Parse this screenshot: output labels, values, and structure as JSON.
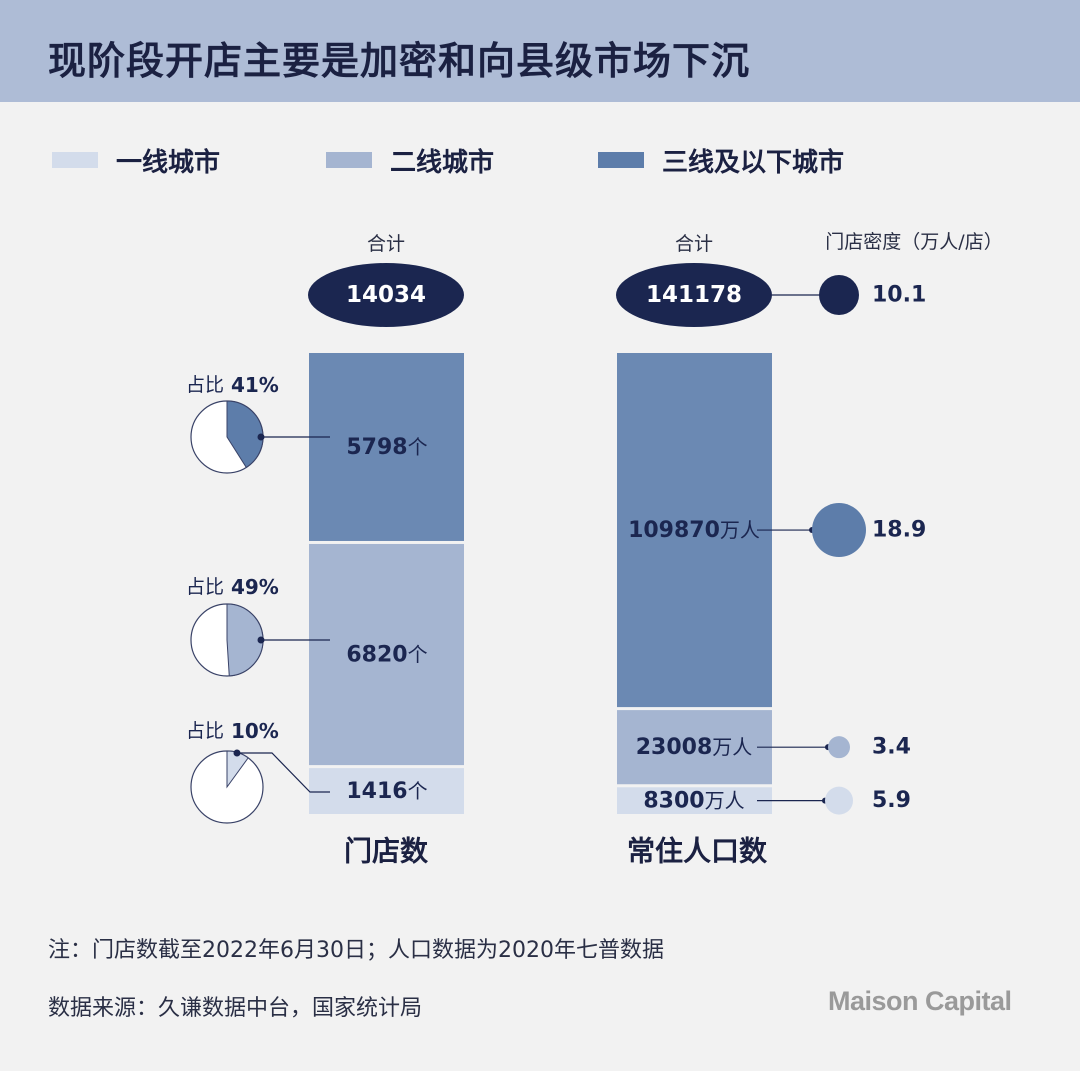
{
  "title": "现阶段开店主要是加密和向县级市场下沉",
  "legend": [
    {
      "label": "一线城市",
      "color": "#d3dceb"
    },
    {
      "label": "二线城市",
      "color": "#a5b5d1"
    },
    {
      "label": "三线及以下城市",
      "color": "#5d7daa"
    }
  ],
  "chart_data": {
    "type": "bar",
    "stacked": true,
    "categories": [
      "门店数",
      "常住人口数"
    ],
    "series": [
      {
        "name": "一线城市",
        "values": [
          1416,
          8300
        ],
        "color": "#d3dceb"
      },
      {
        "name": "二线城市",
        "values": [
          6820,
          23008
        ],
        "color": "#a5b5d1"
      },
      {
        "name": "三线及以下城市",
        "values": [
          5798,
          109870
        ],
        "color": "#6b89b3"
      }
    ],
    "stores": {
      "total_label": "合计",
      "total": "14034",
      "segments": [
        {
          "value": "5798",
          "unit": "个",
          "share_label": "占比",
          "share": "41%",
          "share_value": 0.41
        },
        {
          "value": "6820",
          "unit": "个",
          "share_label": "占比",
          "share": "49%",
          "share_value": 0.49
        },
        {
          "value": "1416",
          "unit": "个",
          "share_label": "占比",
          "share": "10%",
          "share_value": 0.1
        }
      ]
    },
    "population": {
      "total_label": "合计",
      "total": "141178",
      "density_label": "门店密度（万人/店）",
      "total_density": "10.1",
      "segments": [
        {
          "value": "109870",
          "unit": "万人",
          "density": "18.9"
        },
        {
          "value": "23008",
          "unit": "万人",
          "density": "3.4"
        },
        {
          "value": "8300",
          "unit": "万人",
          "density": "5.9"
        }
      ]
    },
    "colors": {
      "dark": "#1b2650",
      "tier1": "#d3dceb",
      "tier2": "#a5b5d1",
      "tier3": "#6b89b3",
      "tier3_dot": "#5d7daa"
    }
  },
  "notes": {
    "note": "注：门店数截至2022年6月30日；人口数据为2020年七普数据",
    "source": "数据来源：久谦数据中台，国家统计局"
  },
  "brand": "Maison Capital"
}
